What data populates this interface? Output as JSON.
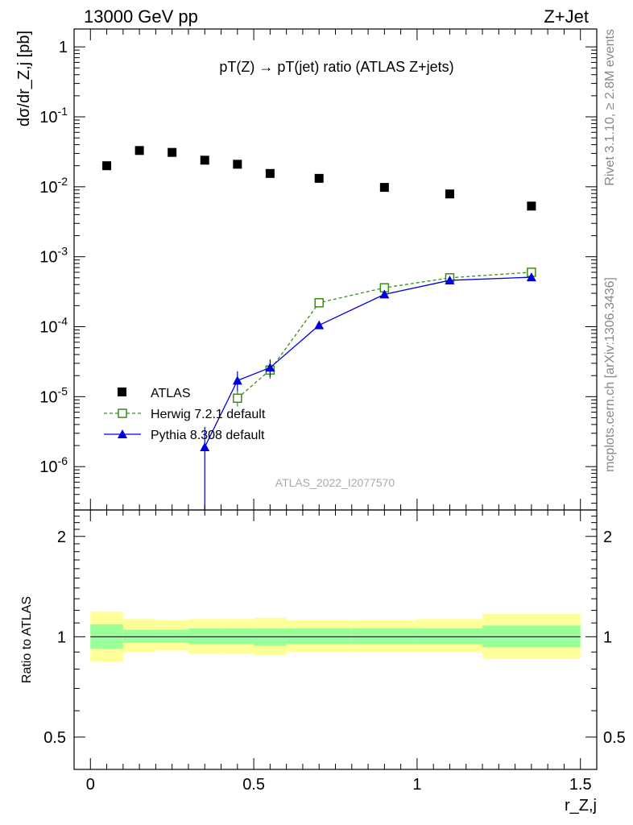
{
  "header": {
    "left": "13000 GeV pp",
    "right": "Z+Jet"
  },
  "side_text": {
    "rivet": "Rivet 3.1.10, ≥ 2.8M events",
    "mcplots": "mcplots.cern.ch [arXiv:1306.3436]"
  },
  "watermark": "ATLAS_2022_I2077570",
  "colors": {
    "atlas": "#000000",
    "herwig": "#3a8c1a",
    "pythia": "#0000dd",
    "band_inner": "#99ff99",
    "band_outer": "#ffff99"
  },
  "chart_data": [
    {
      "type": "scatter",
      "title": "pT(Z) → pT(jet) ratio (ATLAS Z+jets)",
      "xlabel": "r_Z,j",
      "ylabel": "dσ/dr_Z,j [pb]",
      "log_y": true,
      "xlim": [
        -0.05,
        1.55
      ],
      "ylim": [
        2.4e-07,
        1.8
      ],
      "y_tick_labels": [
        "1",
        "10^-1",
        "10^-2",
        "10^-3",
        "10^-4",
        "10^-5",
        "10^-6"
      ],
      "x_tick_labels": [
        "0",
        "0.5",
        "1",
        "1.5"
      ],
      "legend_position": "lower-left",
      "series": [
        {
          "name": "ATLAS",
          "style": "square-markers",
          "x": [
            0.05,
            0.15,
            0.25,
            0.35,
            0.45,
            0.55,
            0.7,
            0.9,
            1.1,
            1.35
          ],
          "y": [
            0.02,
            0.033,
            0.031,
            0.024,
            0.021,
            0.0155,
            0.0132,
            0.0098,
            0.0079,
            0.0053
          ]
        },
        {
          "name": "Herwig 7.2.1 default",
          "style": "dashed-open-square",
          "x": [
            0.45,
            0.55,
            0.7,
            0.9,
            1.1,
            1.35
          ],
          "y": [
            9.5e-06,
            2.4e-05,
            0.00022,
            0.00036,
            0.0005,
            0.0006
          ],
          "err_lo": [
            7.2e-06,
            1.8e-05,
            0.00021,
            0.00035,
            0.00049,
            0.00059
          ],
          "err_hi": [
            1.2e-05,
            3e-05,
            0.00023,
            0.00037,
            0.00051,
            0.00061
          ]
        },
        {
          "name": "Pythia 8.308 default",
          "style": "solid-triangle",
          "x": [
            0.35,
            0.45,
            0.55,
            0.7,
            0.9,
            1.1,
            1.35
          ],
          "y": [
            1.9e-06,
            1.7e-05,
            2.6e-05,
            0.000105,
            0.00029,
            0.00046,
            0.00051
          ],
          "err_lo": [
            1e-09,
            1.2e-05,
            1.9e-05,
            0.0001,
            0.00028,
            0.00045,
            0.0005
          ],
          "err_hi": [
            3.7e-06,
            2.3e-05,
            3.4e-05,
            0.00011,
            0.0003,
            0.00047,
            0.00052
          ]
        }
      ]
    },
    {
      "type": "area",
      "ylabel": "Ratio to ATLAS",
      "xlabel": "r_Z,j",
      "log_y": true,
      "xlim": [
        -0.05,
        1.55
      ],
      "ylim": [
        0.4,
        2.4
      ],
      "y_tick_labels": [
        "0.5",
        "1",
        "2"
      ],
      "reference_line": 1,
      "bands": [
        {
          "x_lo": 0.0,
          "x_hi": 0.1,
          "inner_lo": 0.92,
          "inner_hi": 1.09,
          "outer_lo": 0.84,
          "outer_hi": 1.19
        },
        {
          "x_lo": 0.1,
          "x_hi": 0.2,
          "inner_lo": 0.96,
          "inner_hi": 1.05,
          "outer_lo": 0.9,
          "outer_hi": 1.13
        },
        {
          "x_lo": 0.2,
          "x_hi": 0.3,
          "inner_lo": 0.96,
          "inner_hi": 1.05,
          "outer_lo": 0.91,
          "outer_hi": 1.12
        },
        {
          "x_lo": 0.3,
          "x_hi": 0.4,
          "inner_lo": 0.95,
          "inner_hi": 1.06,
          "outer_lo": 0.89,
          "outer_hi": 1.13
        },
        {
          "x_lo": 0.4,
          "x_hi": 0.5,
          "inner_lo": 0.95,
          "inner_hi": 1.06,
          "outer_lo": 0.89,
          "outer_hi": 1.13
        },
        {
          "x_lo": 0.5,
          "x_hi": 0.6,
          "inner_lo": 0.94,
          "inner_hi": 1.06,
          "outer_lo": 0.88,
          "outer_hi": 1.14
        },
        {
          "x_lo": 0.6,
          "x_hi": 0.8,
          "inner_lo": 0.95,
          "inner_hi": 1.06,
          "outer_lo": 0.9,
          "outer_hi": 1.12
        },
        {
          "x_lo": 0.8,
          "x_hi": 1.0,
          "inner_lo": 0.95,
          "inner_hi": 1.06,
          "outer_lo": 0.9,
          "outer_hi": 1.12
        },
        {
          "x_lo": 1.0,
          "x_hi": 1.2,
          "inner_lo": 0.95,
          "inner_hi": 1.06,
          "outer_lo": 0.9,
          "outer_hi": 1.13
        },
        {
          "x_lo": 1.2,
          "x_hi": 1.5,
          "inner_lo": 0.93,
          "inner_hi": 1.08,
          "outer_lo": 0.86,
          "outer_hi": 1.17
        }
      ]
    }
  ]
}
